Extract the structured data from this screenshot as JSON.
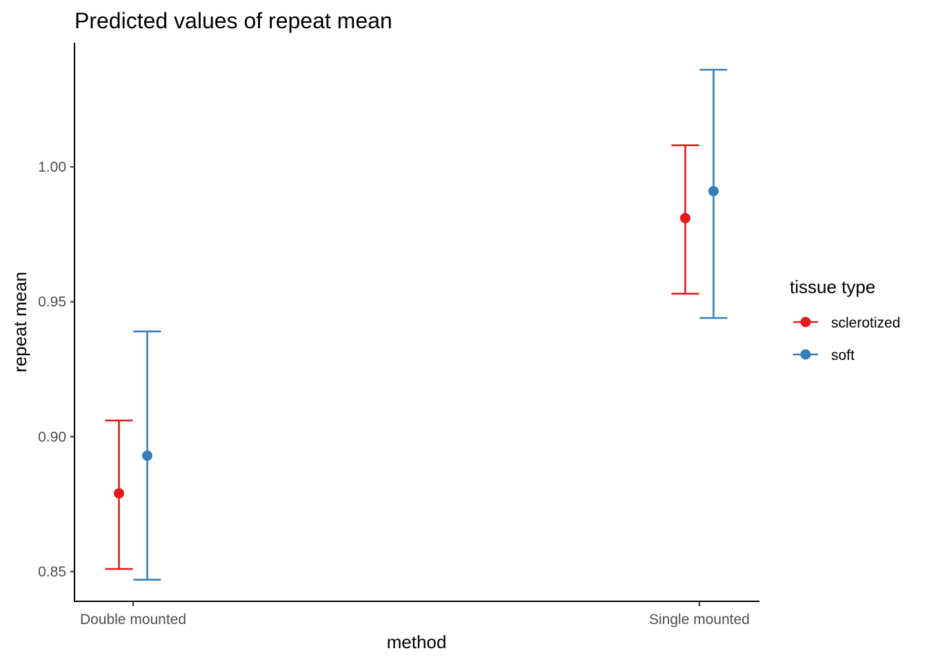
{
  "chart_data": {
    "type": "scatter",
    "title": "Predicted values of repeat mean",
    "xlabel": "method",
    "ylabel": "repeat mean",
    "categories": [
      "Double mounted",
      "Single mounted"
    ],
    "yticks": [
      "0.85",
      "0.90",
      "0.95",
      "1.00"
    ],
    "ylim": [
      0.839,
      1.046
    ],
    "grid": false,
    "legend": {
      "title": "tissue type",
      "position": "right"
    },
    "series": [
      {
        "name": "sclerotized",
        "color": "#e41a1c",
        "values": [
          0.879,
          0.981
        ],
        "lower": [
          0.851,
          0.953
        ],
        "upper": [
          0.906,
          1.008
        ]
      },
      {
        "name": "soft",
        "color": "#377eb8",
        "values": [
          0.893,
          0.991
        ],
        "lower": [
          0.847,
          0.944
        ],
        "upper": [
          0.939,
          1.036
        ]
      }
    ]
  }
}
